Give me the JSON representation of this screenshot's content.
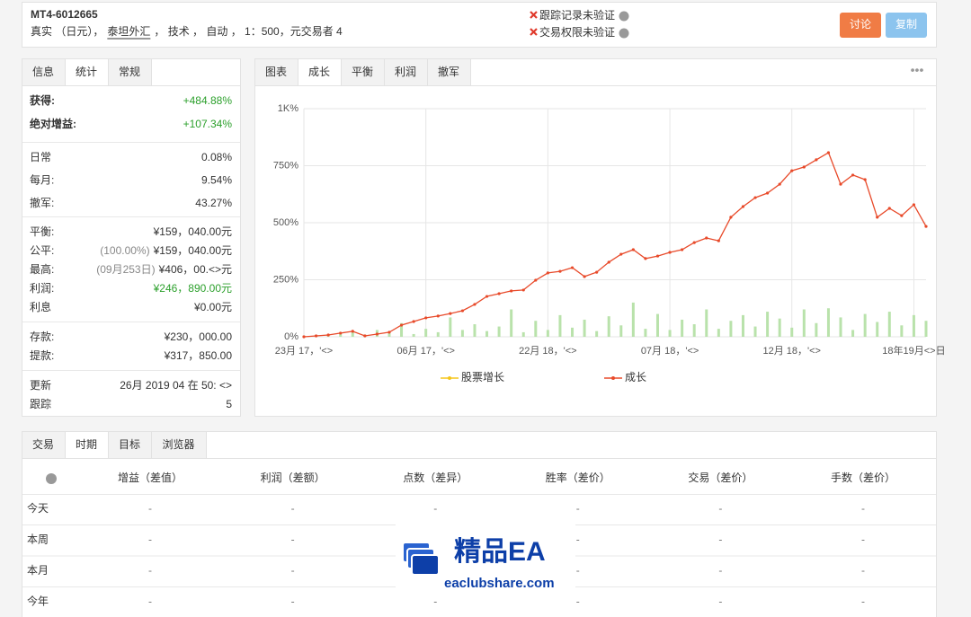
{
  "header": {
    "account": "MT4-6012665",
    "details": [
      "真实 （日元），",
      "泰坦外汇",
      "， 技术 ， 自动 ， 1：500，元交易者 4"
    ],
    "status": [
      "跟踪记录未验证",
      "交易权限未验证"
    ],
    "buttons": [
      "讨论",
      "复制"
    ]
  },
  "stats_panel": {
    "tabs": [
      "信息",
      "统计",
      "常规"
    ],
    "active_tab": 1,
    "groups": [
      [
        {
          "label": "获得:",
          "value": "+484.88%",
          "color": "#2ca02c"
        },
        {
          "label": "绝对增益:",
          "value": "+107.34%",
          "color": "#2ca02c"
        }
      ],
      [
        {
          "label": "日常",
          "value": "0.08%"
        },
        {
          "label": "每月:",
          "value": "9.54%"
        },
        {
          "label": "撤军:",
          "value": "43.27%"
        }
      ],
      [
        {
          "label": "平衡:",
          "value": "¥159，040.00元"
        },
        {
          "label": "公平:",
          "note": "(100.00%)",
          "value": "¥159，040.00元"
        },
        {
          "label": "最高:",
          "note": "(09月253日)",
          "value": "¥406，00.<>元"
        },
        {
          "label": "利润:",
          "value": "¥246，890.00元",
          "color": "#2ca02c"
        },
        {
          "label": "利息",
          "value": "¥0.00元"
        }
      ],
      [
        {
          "label": "存款:",
          "value": "¥230，000.00"
        },
        {
          "label": "提款:",
          "value": "¥317，850.00"
        }
      ],
      [
        {
          "label": "更新",
          "value": "26月 2019 04 在 50: <>"
        },
        {
          "label": "跟踪",
          "value": "5"
        }
      ]
    ]
  },
  "chart_panel": {
    "tabs": [
      "图表",
      "成长",
      "平衡",
      "利润",
      "撤军"
    ],
    "active_tab": 1,
    "menu": "•••"
  },
  "chart_data": {
    "type": "line",
    "xlim": [
      0,
      102
    ],
    "xticks": [
      {
        "value": 0,
        "label": "23月 17，'<>"
      },
      {
        "value": 20,
        "label": "06月 17，'<>"
      },
      {
        "value": 40,
        "label": "22月 18，'<>"
      },
      {
        "value": 60,
        "label": "07月 18，'<>"
      },
      {
        "value": 80,
        "label": "12月 18，'<>"
      },
      {
        "value": 100,
        "label": "18年19月<>日"
      }
    ],
    "ylim": [
      0,
      1000
    ],
    "yticks": [
      {
        "value": 0,
        "label": "0%"
      },
      {
        "value": 250,
        "label": "250%"
      },
      {
        "value": 500,
        "label": "500%"
      },
      {
        "value": 750,
        "label": "750%"
      },
      {
        "value": 1000,
        "label": "1K%"
      }
    ],
    "grid": true,
    "series": [
      {
        "name": "股票增长",
        "color": "#f5c518",
        "type": "bar",
        "bar_color": "#b9e2ab",
        "values": [
          5,
          8,
          3,
          12,
          20,
          10,
          30,
          15,
          60,
          12,
          35,
          20,
          85,
          30,
          55,
          25,
          45,
          120,
          20,
          70,
          30,
          95,
          40,
          75,
          25,
          90,
          50,
          150,
          35,
          100,
          30,
          75,
          55,
          120,
          35,
          70,
          95,
          45,
          110,
          80,
          40,
          120,
          60,
          125,
          85,
          30,
          100,
          65,
          110,
          50,
          95,
          70
        ]
      },
      {
        "name": "成长",
        "color": "#e84a2a",
        "values": [
          0,
          4,
          8,
          16,
          24,
          4,
          12,
          20,
          51,
          67,
          83,
          91,
          102,
          114,
          142,
          177,
          189,
          201,
          205,
          248,
          280,
          287,
          303,
          264,
          283,
          327,
          362,
          382,
          343,
          354,
          370,
          382,
          413,
          433,
          421,
          524,
          571,
          610,
          630,
          669,
          728,
          744,
          776,
          807,
          669,
          709,
          689,
          524,
          563,
          531,
          579,
          484
        ]
      }
    ]
  },
  "periods_panel": {
    "tabs": [
      "交易",
      "时期",
      "目标",
      "浏览器"
    ],
    "active_tab": 1,
    "columns": [
      "增益（差值）",
      "利润（差额）",
      "点数（差异）",
      "胜率（差价）",
      "交易（差价）",
      "手数（差价）"
    ],
    "rows": [
      {
        "label": "今天",
        "cells": [
          "-",
          "-",
          "-",
          "-",
          "-",
          "-"
        ]
      },
      {
        "label": "本周",
        "cells": [
          "-",
          "-",
          "-",
          "-",
          "-",
          "-"
        ]
      },
      {
        "label": "本月",
        "cells": [
          "-",
          "-",
          "-",
          "-",
          "-",
          "-"
        ]
      },
      {
        "label": "今年",
        "cells": [
          "-",
          "-",
          "-",
          "-",
          "-",
          "-"
        ]
      }
    ]
  },
  "watermark": {
    "title": "精品EA",
    "site": "eaclubshare.com"
  }
}
